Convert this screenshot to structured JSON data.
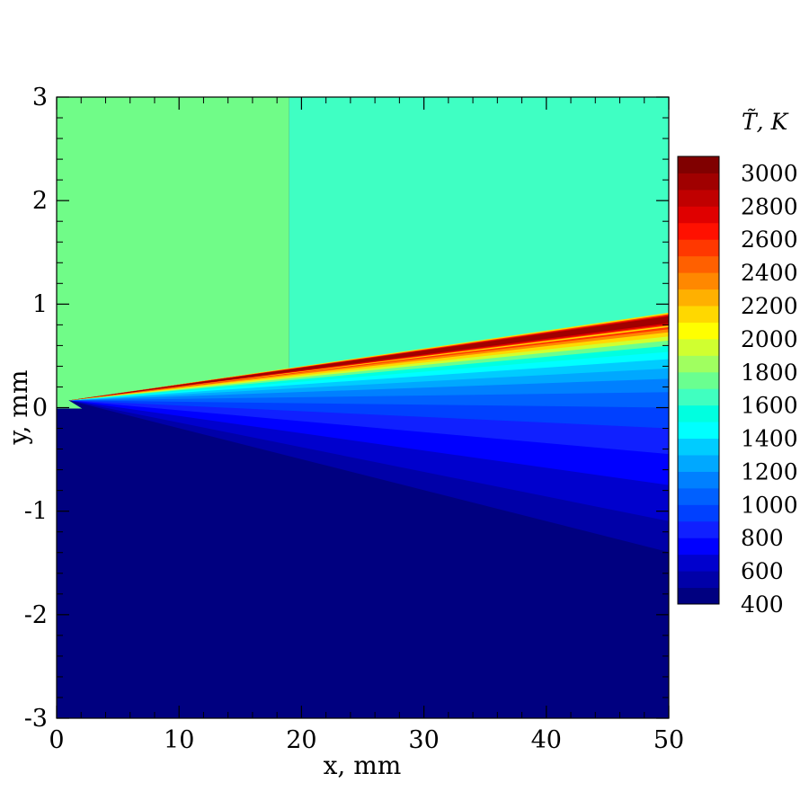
{
  "chart_data": {
    "type": "heatmap",
    "title": "",
    "xlabel": "x, mm",
    "ylabel": "y, mm",
    "xlim": [
      0,
      50
    ],
    "ylim": [
      -3,
      3
    ],
    "x_ticks": [
      "0",
      "10",
      "20",
      "30",
      "40",
      "50"
    ],
    "y_ticks": [
      "3",
      "2",
      "1",
      "0",
      "-1",
      "-2",
      "-3"
    ],
    "colorbar": {
      "title": "T̃, K",
      "range": [
        400,
        3100
      ],
      "tick_labels": [
        "3000",
        "2800",
        "2600",
        "2400",
        "2200",
        "2000",
        "1800",
        "1600",
        "1400",
        "1200",
        "1000",
        "800",
        "600",
        "400"
      ],
      "colors": [
        "#000080",
        "#0000a8",
        "#0000cd",
        "#0000ff",
        "#1020ff",
        "#0040ff",
        "#0060ff",
        "#0080ff",
        "#00a8ff",
        "#00ccff",
        "#00ffff",
        "#00ffe0",
        "#40ffc0",
        "#6aff90",
        "#a0ff60",
        "#d0ff30",
        "#ffff00",
        "#ffd800",
        "#ffb000",
        "#ff8800",
        "#ff6000",
        "#ff3800",
        "#ff1000",
        "#e00000",
        "#c00000",
        "#a00000",
        "#800000"
      ]
    },
    "regions": {
      "upper_left": {
        "x_range": [
          0,
          19
        ],
        "temperature": 1700,
        "color": "#70fc88"
      },
      "upper_right": {
        "x_range": [
          19,
          50
        ],
        "temperature": 1550,
        "color": "#3fffc3"
      },
      "lower_ambient": {
        "temperature": 400,
        "color": "#000080"
      },
      "flame_front": {
        "x_start": 1,
        "y_start": 0.07,
        "x_end": 50,
        "y_end": 0.85,
        "peak_temperature": 3000,
        "peak_color": "#a00000"
      }
    }
  }
}
